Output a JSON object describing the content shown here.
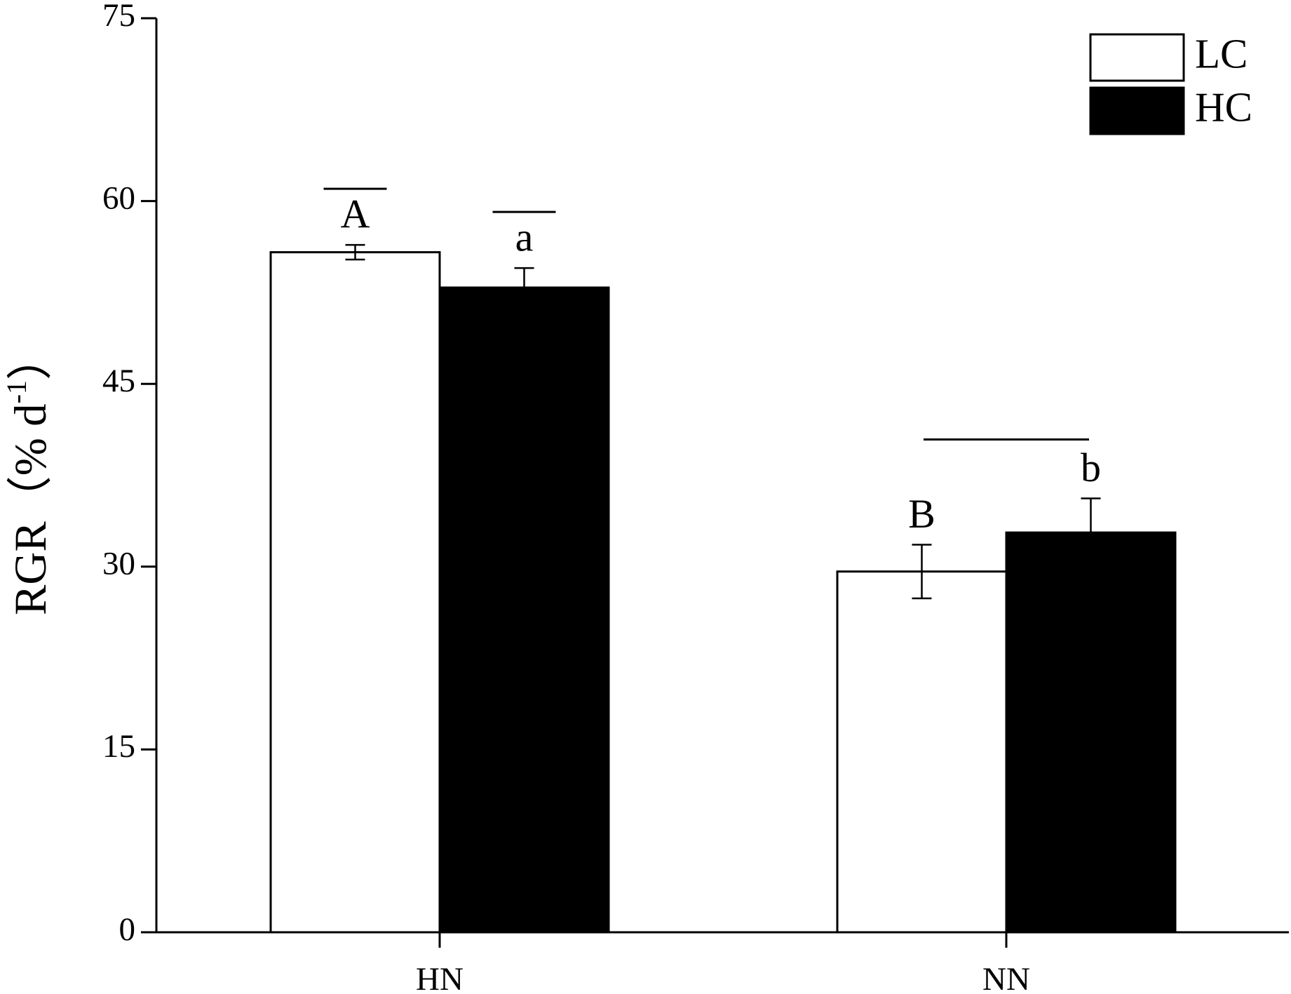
{
  "chart_data": {
    "type": "bar",
    "y_label": "RGR（% d",
    "y_label_sup": "-1",
    "y_label_end": "）",
    "categories": [
      "HN",
      "NN"
    ],
    "series": [
      {
        "name": "LC",
        "color": "#ffffff",
        "values": [
          55.8,
          29.6
        ],
        "errors": [
          0.6,
          2.2
        ],
        "letters": [
          "A",
          "B"
        ]
      },
      {
        "name": "HC",
        "color": "#000000",
        "values": [
          52.9,
          32.8
        ],
        "errors": [
          1.6,
          2.8
        ],
        "letters": [
          "a",
          "b"
        ]
      }
    ],
    "ylim": [
      0,
      75
    ],
    "yticks": [
      0,
      15,
      30,
      45,
      60,
      75
    ],
    "legend": "upper right"
  }
}
